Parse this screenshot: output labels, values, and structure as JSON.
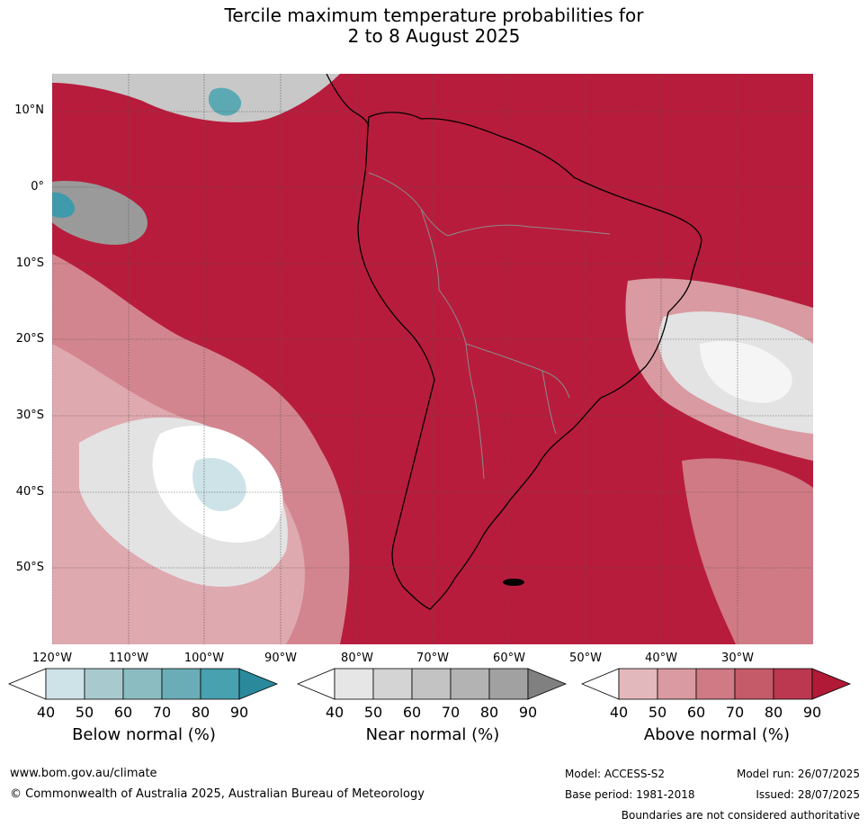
{
  "title_line1": "Tercile maximum temperature probabilities for",
  "title_line2": "2 to 8 August 2025",
  "map": {
    "lat_labels": [
      "10°N",
      "0°",
      "10°S",
      "20°S",
      "30°S",
      "40°S",
      "50°S"
    ],
    "lon_labels": [
      "120°W",
      "110°W",
      "100°W",
      "90°W",
      "80°W",
      "70°W",
      "60°W",
      "50°W",
      "40°W",
      "30°W"
    ],
    "colors": {
      "above_dominant": "#b81c3c",
      "land_outline": "#000000",
      "grid": "#555555"
    }
  },
  "colorbars": [
    {
      "title": "Below normal (%)",
      "ticks": [
        "40",
        "50",
        "60",
        "70",
        "80",
        "90"
      ],
      "colors": [
        "#ffffff",
        "#cde3e8",
        "#a8cace",
        "#8bbcc2",
        "#6aadb6",
        "#47a1af",
        "#2a8a9c"
      ]
    },
    {
      "title": "Near normal (%)",
      "ticks": [
        "40",
        "50",
        "60",
        "70",
        "80",
        "90"
      ],
      "colors": [
        "#ffffff",
        "#e6e6e6",
        "#d4d4d4",
        "#c3c3c3",
        "#b3b3b3",
        "#a1a1a1",
        "#808080"
      ]
    },
    {
      "title": "Above normal (%)",
      "ticks": [
        "40",
        "50",
        "60",
        "70",
        "80",
        "90"
      ],
      "colors": [
        "#ffffff",
        "#e3b8bd",
        "#d99aa1",
        "#cf7a85",
        "#c55a68",
        "#bc3750",
        "#b01a36"
      ]
    }
  ],
  "footer": {
    "website": "www.bom.gov.au/climate",
    "copyright": "© Commonwealth of Australia 2025, Australian Bureau of Meteorology",
    "model": "Model: ACCESS-S2",
    "model_run": "Model run: 26/07/2025",
    "base_period": "Base period: 1981-2018",
    "issued": "Issued: 28/07/2025",
    "disclaimer": "Boundaries are not considered authoritative"
  }
}
